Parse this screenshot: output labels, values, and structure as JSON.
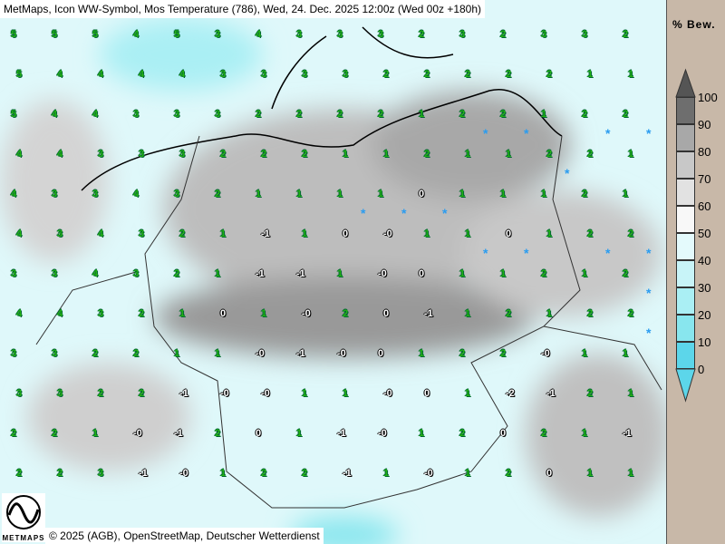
{
  "title": "MetMaps, Icon WW-Symbol, Mos Temperature (786), Wed, 24. Dec. 2025 12:00z (Wed 00z +180h)",
  "footer": "© 2025 (AGB), OpenStreetMap, Deutscher Wetterdienst",
  "logo_text": "METMAPS",
  "legend": {
    "title": "% Bew.",
    "levels": [
      {
        "label": "100",
        "color": "#6e6e6e"
      },
      {
        "label": "90",
        "color": "#8a8a8a"
      },
      {
        "label": "80",
        "color": "#a8a8a8"
      },
      {
        "label": "70",
        "color": "#c8c8c8"
      },
      {
        "label": "60",
        "color": "#e2e2e2"
      },
      {
        "label": "50",
        "color": "#f8f8f8"
      },
      {
        "label": "40",
        "color": "#e4fafc"
      },
      {
        "label": "30",
        "color": "#c8f4f8"
      },
      {
        "label": "20",
        "color": "#aaeff4"
      },
      {
        "label": "10",
        "color": "#88e6ee"
      },
      {
        "label": "0",
        "color": "#5cd6ea"
      }
    ],
    "top_arrow_color": "#555555",
    "bottom_arrow_color": "#5cd6ea"
  },
  "station_temperatures": [
    "5",
    "5",
    "5",
    "4",
    "5",
    "3",
    "4",
    "3",
    "3",
    "3",
    "2",
    "3",
    "2",
    "3",
    "3",
    "2",
    "5",
    "4",
    "4",
    "4",
    "4",
    "3",
    "3",
    "3",
    "3",
    "2",
    "2",
    "2",
    "2",
    "2",
    "1",
    "1",
    "5",
    "4",
    "4",
    "3",
    "3",
    "3",
    "2",
    "2",
    "2",
    "2",
    "1",
    "2",
    "2",
    "1",
    "2",
    "2",
    "4",
    "4",
    "3",
    "3",
    "3",
    "2",
    "2",
    "2",
    "1",
    "1",
    "2",
    "1",
    "1",
    "2",
    "2",
    "1",
    "4",
    "3",
    "3",
    "4",
    "3",
    "2",
    "1",
    "1",
    "1",
    "1",
    "0",
    "1",
    "1",
    "1",
    "2",
    "1",
    "4",
    "3",
    "4",
    "3",
    "2",
    "1",
    "-1",
    "1",
    "0",
    "-0",
    "1",
    "1",
    "0",
    "1",
    "2",
    "2",
    "3",
    "3",
    "4",
    "3",
    "2",
    "1",
    "-1",
    "-1",
    "1",
    "-0",
    "0",
    "1",
    "1",
    "2",
    "1",
    "2",
    "4",
    "4",
    "3",
    "2",
    "1",
    "0",
    "1",
    "-0",
    "2",
    "0",
    "-1",
    "1",
    "2",
    "1",
    "2",
    "2",
    "3",
    "3",
    "2",
    "2",
    "1",
    "1",
    "-0",
    "-1",
    "-0",
    "0",
    "1",
    "2",
    "2",
    "-0",
    "1",
    "1",
    "3",
    "3",
    "2",
    "2",
    "-1",
    "-0",
    "-0",
    "1",
    "1",
    "-0",
    "0",
    "1",
    "-2",
    "-1",
    "2",
    "1",
    "2",
    "2",
    "1",
    "-0",
    "-1",
    "2",
    "0",
    "1",
    "-1",
    "-0",
    "1",
    "2",
    "0",
    "2",
    "1",
    "-1",
    "2",
    "2",
    "3",
    "-1",
    "-0",
    "1",
    "2",
    "2",
    "-1",
    "1",
    "-0",
    "1",
    "2",
    "0",
    "1",
    "1"
  ],
  "weather_symbols": {
    "snow": "snow-asterisk-icon",
    "fog": "fog-lines-icon",
    "drizzle": "drizzle-dots-icon"
  },
  "colors": {
    "positive_temp": "#22b014",
    "negative_temp": "#ffffff",
    "snow": "#2a9cf0",
    "background": "#dff8fa"
  }
}
